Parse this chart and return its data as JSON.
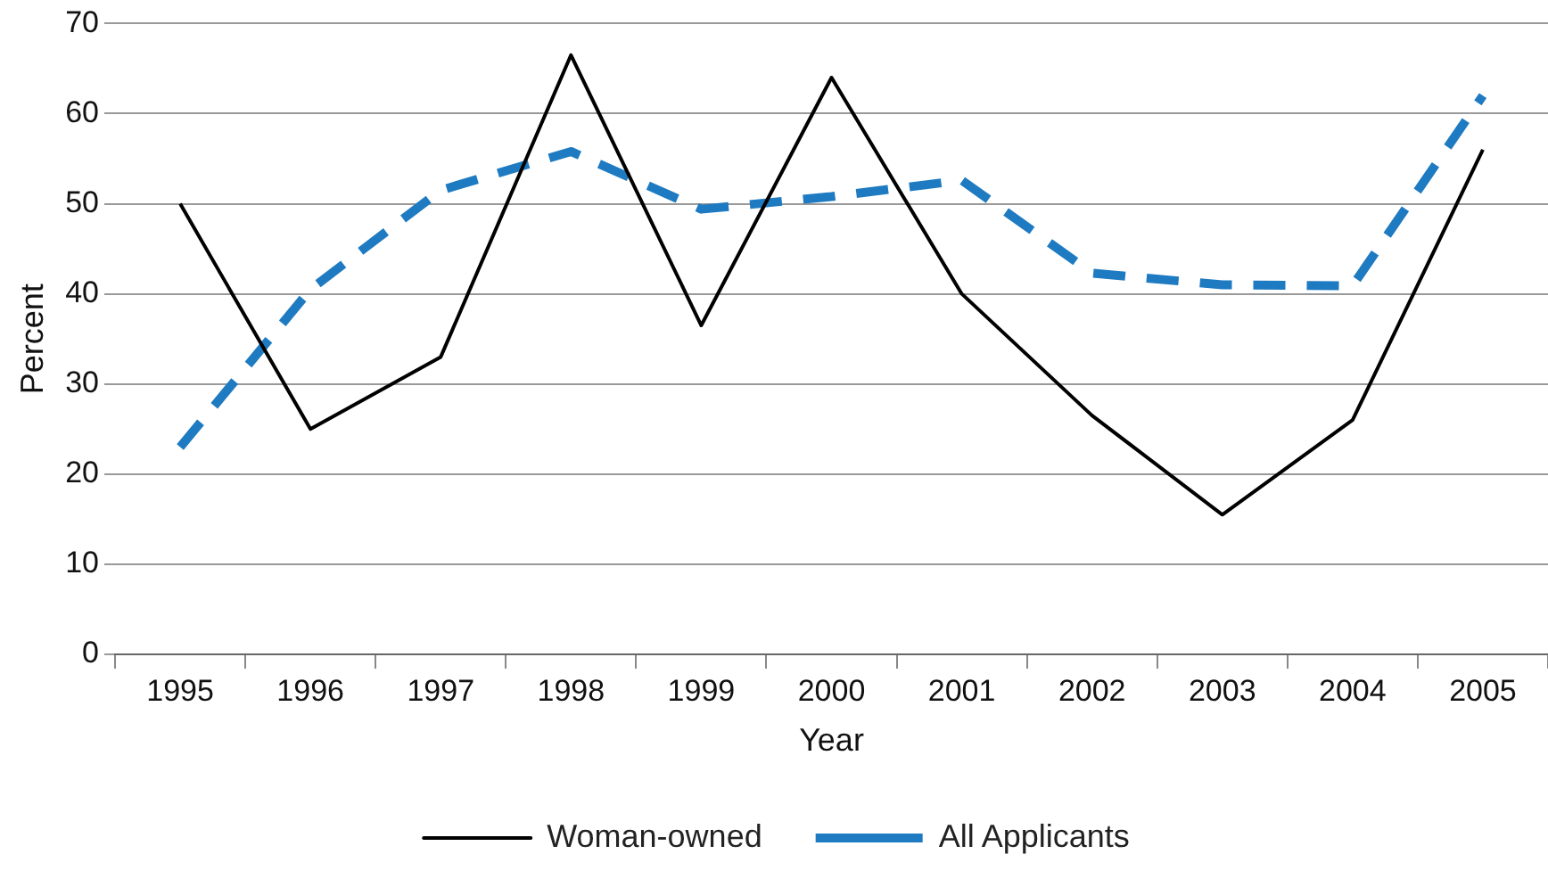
{
  "chart_data": {
    "type": "line",
    "xlabel": "Year",
    "ylabel": "Percent",
    "categories": [
      "1995",
      "1996",
      "1997",
      "1998",
      "1999",
      "2000",
      "2001",
      "2002",
      "2003",
      "2004",
      "2005"
    ],
    "series": [
      {
        "name": "Woman-owned",
        "color": "#000000",
        "line_style": "solid",
        "values": [
          50,
          25,
          33,
          66.5,
          36.5,
          64,
          40,
          26.5,
          15.5,
          26,
          56
        ]
      },
      {
        "name": "All Applicants",
        "color": "#1f7bc1",
        "line_style": "dashed",
        "values": [
          23,
          40.5,
          51.5,
          55.8,
          49.4,
          50.8,
          52.6,
          42.3,
          41,
          40.9,
          62
        ]
      }
    ],
    "ylim": [
      0,
      70
    ],
    "yticks": [
      0,
      10,
      20,
      30,
      40,
      50,
      60,
      70
    ],
    "grid": "y",
    "legend": "bottom",
    "marker": "none"
  }
}
